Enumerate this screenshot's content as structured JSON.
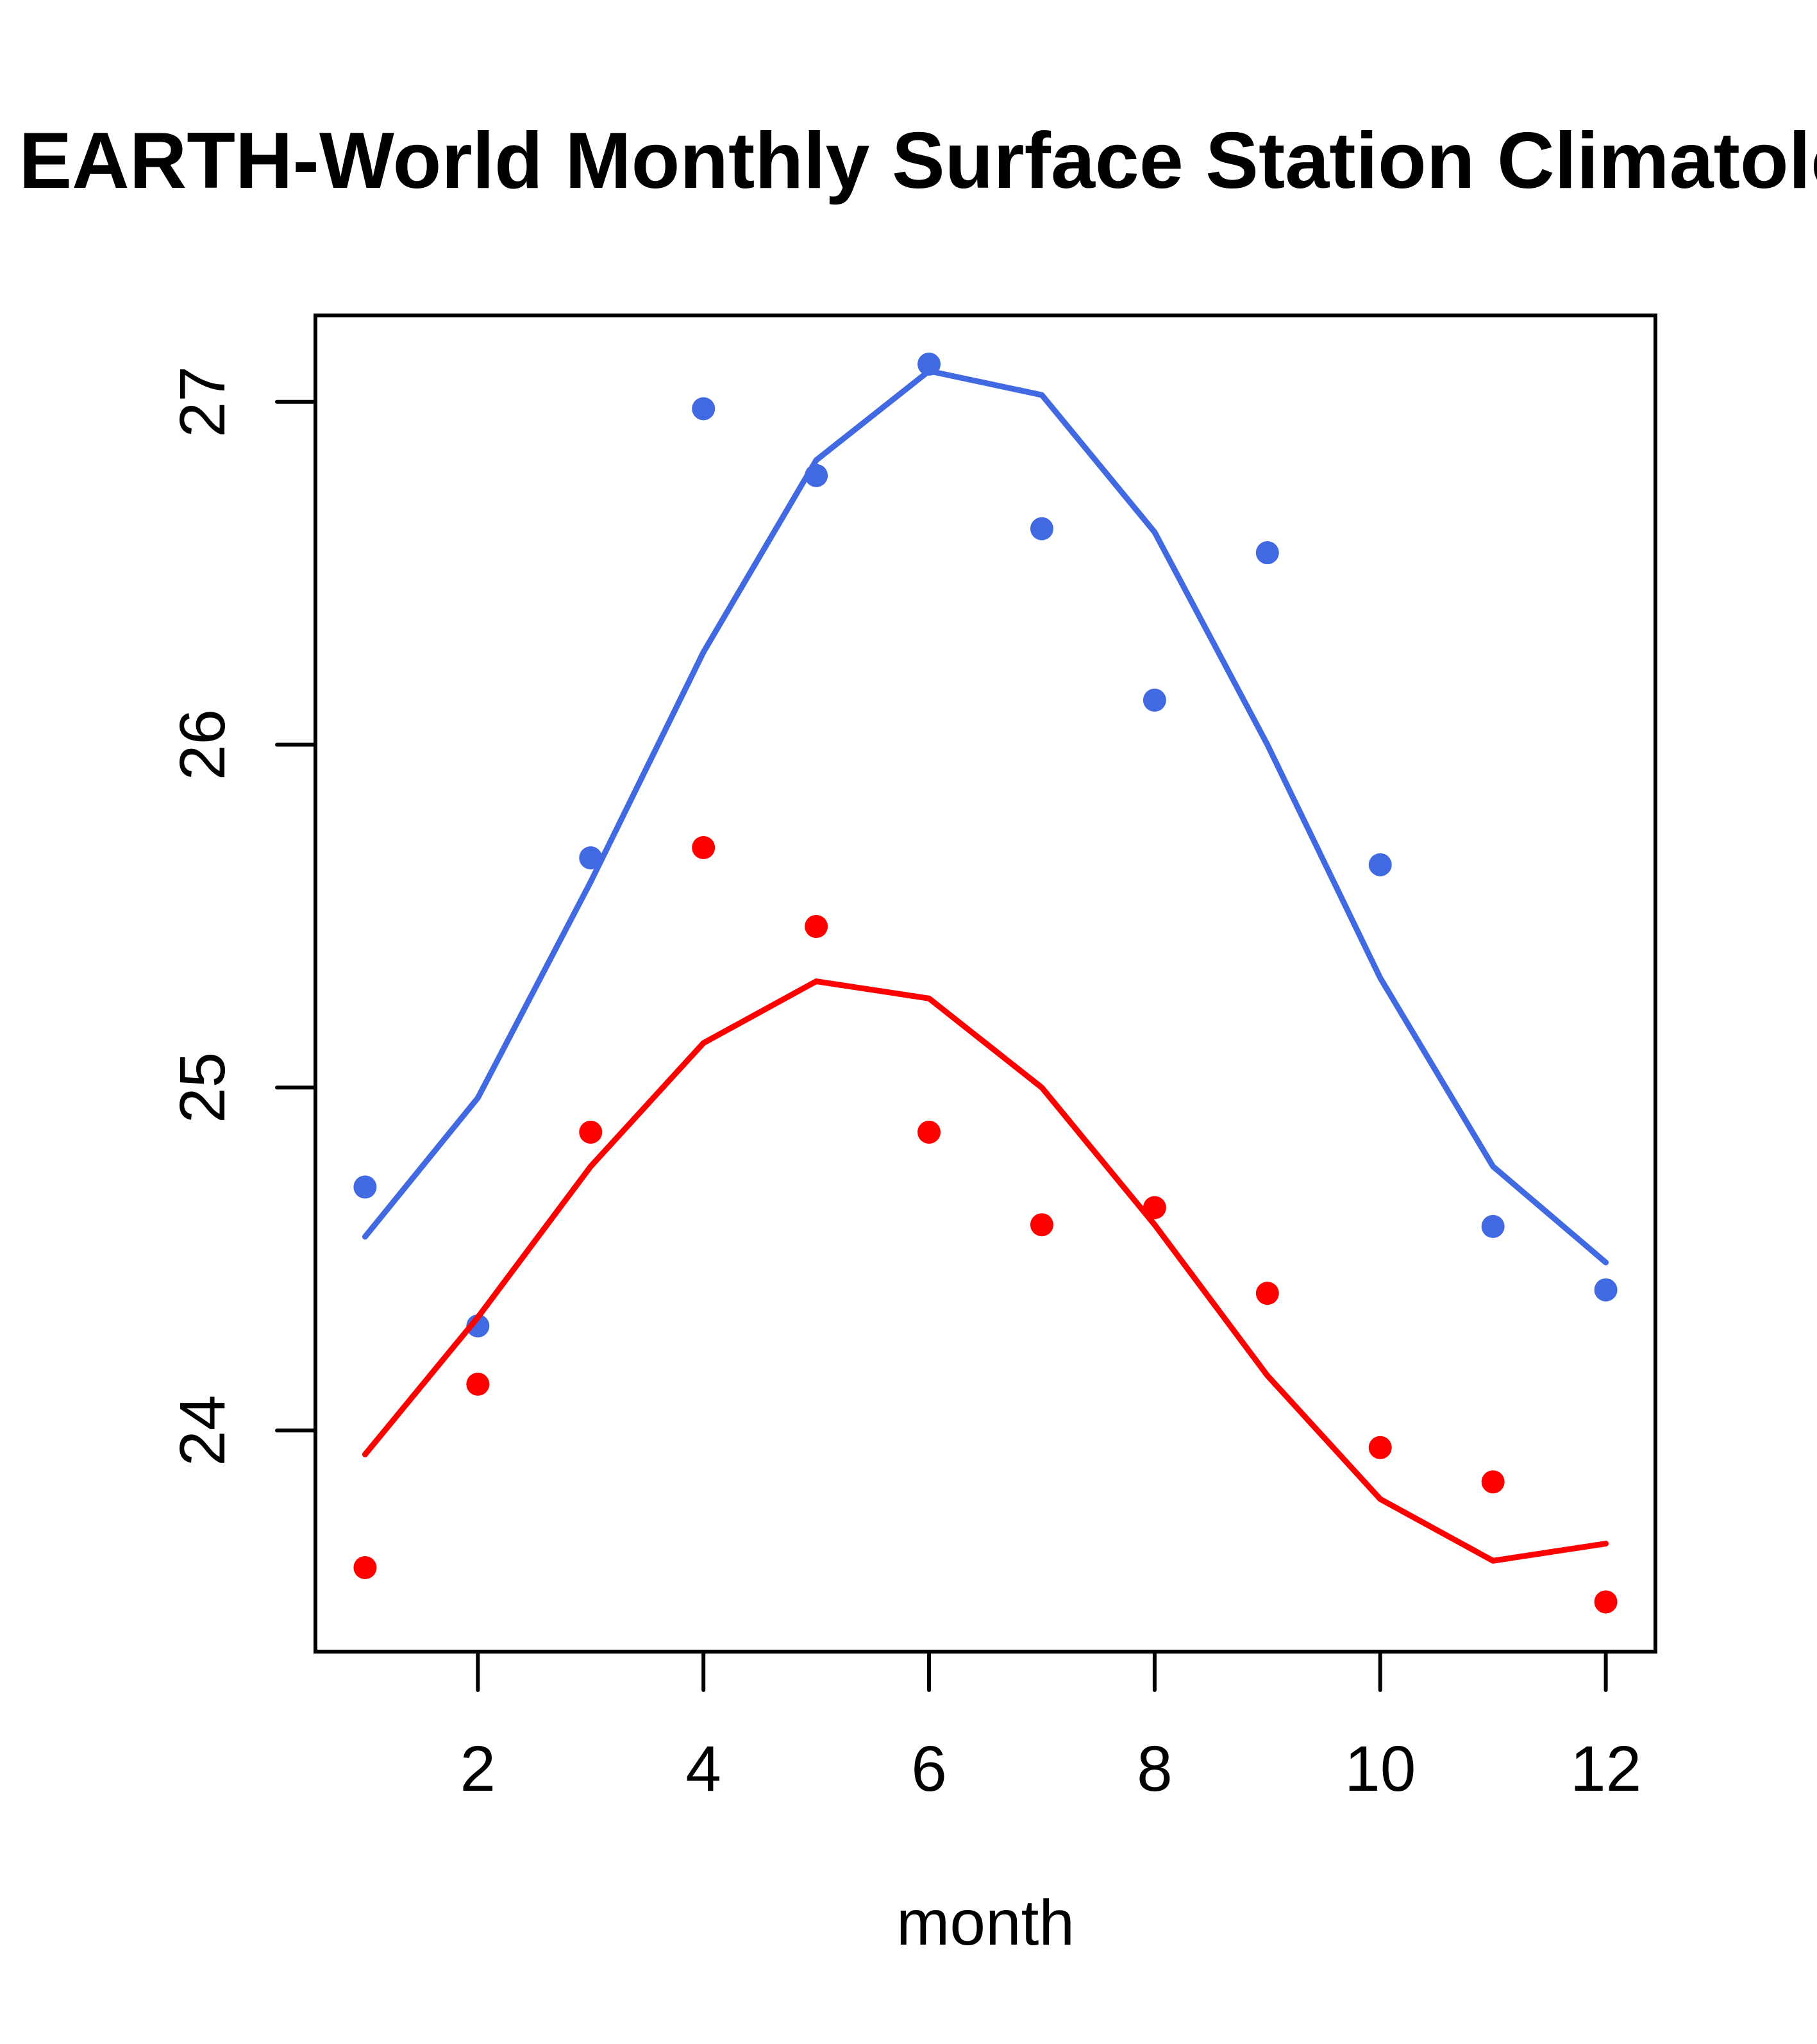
{
  "chart_data": {
    "type": "scatter",
    "title": "EARTH-World Monthly Surface Station Climatology",
    "xlabel": "month",
    "ylabel": "",
    "x": [
      1,
      2,
      3,
      4,
      5,
      6,
      7,
      8,
      9,
      10,
      11,
      12
    ],
    "xlim": [
      0.56,
      12.44
    ],
    "ylim": [
      23.355,
      27.252
    ],
    "x_ticks": [
      2,
      4,
      6,
      8,
      10,
      12
    ],
    "x_tick_labels": [
      "2",
      "4",
      "6",
      "8",
      "10",
      "12"
    ],
    "y_ticks": [
      24,
      25,
      26,
      27
    ],
    "y_tick_labels": [
      "24",
      "25",
      "26",
      "27"
    ],
    "grid": false,
    "legend": null,
    "series": [
      {
        "name": "blue points",
        "kind": "points",
        "color": "#4169E1",
        "values": [
          24.71,
          24.305,
          25.67,
          26.98,
          26.785,
          27.11,
          26.63,
          26.13,
          26.56,
          25.65,
          24.595,
          24.41
        ]
      },
      {
        "name": "blue line",
        "kind": "line",
        "color": "#4169E1",
        "values": [
          24.565,
          24.97,
          25.6,
          26.27,
          26.83,
          27.09,
          27.02,
          26.62,
          26.0,
          25.32,
          24.77,
          24.49
        ]
      },
      {
        "name": "red points",
        "kind": "points",
        "color": "#FF0000",
        "values": [
          23.6,
          24.135,
          24.87,
          25.7,
          25.47,
          24.87,
          24.6,
          24.65,
          24.4,
          23.95,
          23.85,
          23.5
        ]
      },
      {
        "name": "red line",
        "kind": "line",
        "color": "#FF0000",
        "values": [
          23.93,
          24.33,
          24.77,
          25.13,
          25.31,
          25.26,
          25.0,
          24.6,
          24.16,
          23.8,
          23.62,
          23.67
        ]
      }
    ]
  }
}
